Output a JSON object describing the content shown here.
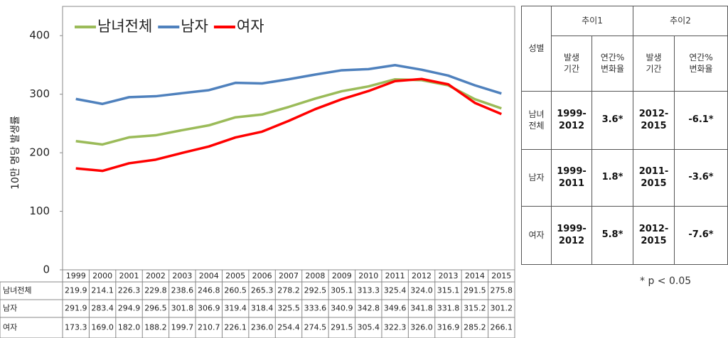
{
  "chart_data": {
    "type": "line",
    "y_label": "10만 명당 발생률",
    "categories": [
      "1999",
      "2000",
      "2001",
      "2002",
      "2003",
      "2004",
      "2005",
      "2006",
      "2007",
      "2008",
      "2009",
      "2010",
      "2011",
      "2012",
      "2013",
      "2014",
      "2015"
    ],
    "series": [
      {
        "name": "남녀전체",
        "color": "#9bbb59",
        "values": [
          219.9,
          214.1,
          226.3,
          229.8,
          238.6,
          246.8,
          260.5,
          265.3,
          278.2,
          292.5,
          305.1,
          313.3,
          325.4,
          324.0,
          315.1,
          291.5,
          275.8
        ],
        "value_labels": [
          "219.9",
          "214.1",
          "226.3",
          "229.8",
          "238.6",
          "246.8",
          "260.5",
          "265.3",
          "278.2",
          "292.5",
          "305.1",
          "313.3",
          "325.4",
          "324.0",
          "315.1",
          "291.5",
          "275.8"
        ]
      },
      {
        "name": "남자",
        "color": "#4f81bd",
        "values": [
          291.9,
          283.4,
          294.9,
          296.5,
          301.8,
          306.9,
          319.4,
          318.4,
          325.5,
          333.6,
          340.9,
          342.8,
          349.6,
          341.8,
          331.8,
          315.2,
          301.2
        ],
        "value_labels": [
          "291.9",
          "283.4",
          "294.9",
          "296.5",
          "301.8",
          "306.9",
          "319.4",
          "318.4",
          "325.5",
          "333.6",
          "340.9",
          "342.8",
          "349.6",
          "341.8",
          "331.8",
          "315.2",
          "301.2"
        ]
      },
      {
        "name": "여자",
        "color": "#ff0000",
        "values": [
          173.3,
          169.0,
          182.0,
          188.2,
          199.7,
          210.7,
          226.1,
          236.0,
          254.4,
          274.5,
          291.5,
          305.4,
          322.3,
          326.0,
          316.9,
          285.2,
          266.1
        ],
        "value_labels": [
          "173.3",
          "169.0",
          "182.0",
          "188.2",
          "199.7",
          "210.7",
          "226.1",
          "236.0",
          "254.4",
          "274.5",
          "291.5",
          "305.4",
          "322.3",
          "326.0",
          "316.9",
          "285.2",
          "266.1"
        ]
      }
    ],
    "ylim": [
      0,
      450
    ],
    "yticks": [
      0,
      100,
      200,
      300,
      400
    ],
    "grid": false,
    "legend": "top-left"
  },
  "trend_table": {
    "header": {
      "sex": "성별",
      "trend1": "추이1",
      "trend2": "추이2",
      "sub": [
        "발생\n기간",
        "연간%\n변화율",
        "발생\n기간",
        "연간%\n변화율"
      ]
    },
    "rows": [
      [
        "남녀\n전체",
        "1999-\n2012",
        "3.6*",
        "2012-\n2015",
        "-6.1*"
      ],
      [
        "남자",
        "1999-\n2011",
        "1.8*",
        "2011-\n2015",
        "-3.6*"
      ],
      [
        "여자",
        "1999-\n2012",
        "5.8*",
        "2012-\n2015",
        "-7.6*"
      ]
    ],
    "footnote": "* p < 0.05"
  }
}
